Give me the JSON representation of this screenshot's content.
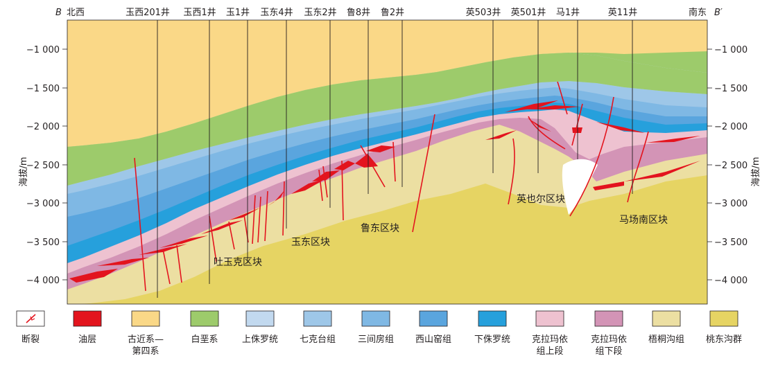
{
  "section": {
    "left_end": "B",
    "right_end": "B′",
    "left_direction": "北西",
    "right_direction": "南东"
  },
  "wells": [
    {
      "name": "玉西201井"
    },
    {
      "name": "玉西1井"
    },
    {
      "name": "玉1井"
    },
    {
      "name": "玉东4井"
    },
    {
      "name": "玉东2井"
    },
    {
      "name": "鲁8井"
    },
    {
      "name": "鲁2井"
    },
    {
      "name": "英503井"
    },
    {
      "name": "英501井"
    },
    {
      "name": "马1井"
    },
    {
      "name": "英11井"
    }
  ],
  "axis": {
    "label": "海拔/m",
    "ticks": [
      "−1 000",
      "−1 500",
      "−2 000",
      "−2 500",
      "−3 000",
      "−3 500",
      "−4 000"
    ]
  },
  "blocks": [
    {
      "name": "吐玉克区块"
    },
    {
      "name": "玉东区块"
    },
    {
      "name": "鲁东区块"
    },
    {
      "name": "英也尔区块"
    },
    {
      "name": "马场南区块"
    }
  ],
  "legend": [
    {
      "label": "断裂",
      "color": "#ffffff",
      "icon": "fault-symbol-icon"
    },
    {
      "label": "油层",
      "color": "#e3141e"
    },
    {
      "label": "古近系—\n第四系",
      "color": "#fad887"
    },
    {
      "label": "白垩系",
      "color": "#9dcb6b"
    },
    {
      "label": "上侏罗统",
      "color": "#c2d9ef"
    },
    {
      "label": "七克台组",
      "color": "#9ec7e8"
    },
    {
      "label": "三间房组",
      "color": "#7fb8e4"
    },
    {
      "label": "西山窑组",
      "color": "#5aa5de"
    },
    {
      "label": "下侏罗统",
      "color": "#26a0dc"
    },
    {
      "label": "克拉玛依\n组上段",
      "color": "#eec2d0"
    },
    {
      "label": "克拉玛依\n组下段",
      "color": "#d394b6"
    },
    {
      "label": "梧桐沟组",
      "color": "#ecdfa2"
    },
    {
      "label": "桃东沟群",
      "color": "#e6d463"
    }
  ]
}
